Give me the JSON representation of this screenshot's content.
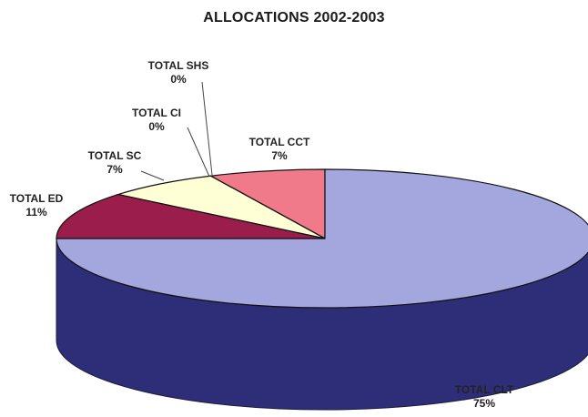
{
  "chart_data": {
    "type": "pie",
    "title": "ALLOCATIONS 2002-2003",
    "slices": [
      {
        "label": "TOTAL CLT",
        "percent_label": "75%",
        "value": 75,
        "color": "#a4a6de"
      },
      {
        "label": "TOTAL ED",
        "percent_label": "11%",
        "value": 11,
        "color": "#9b1d4c"
      },
      {
        "label": "TOTAL SC",
        "percent_label": "7%",
        "value": 7,
        "color": "#ffffd6"
      },
      {
        "label": "TOTAL CI",
        "percent_label": "0%",
        "value": 0,
        "color": "#ffffd6"
      },
      {
        "label": "TOTAL SHS",
        "percent_label": "0%",
        "value": 0,
        "color": "#ffffd6"
      },
      {
        "label": "TOTAL CCT",
        "percent_label": "7%",
        "value": 7,
        "color": "#f07a8a"
      }
    ],
    "side_colors": {
      "TOTAL CLT": "#2e2e78",
      "TOTAL ED": "#6b1233",
      "TOTAL CCT": "#b8525f",
      "TOTAL SC": "#d8d8a8"
    },
    "legend": "none"
  }
}
